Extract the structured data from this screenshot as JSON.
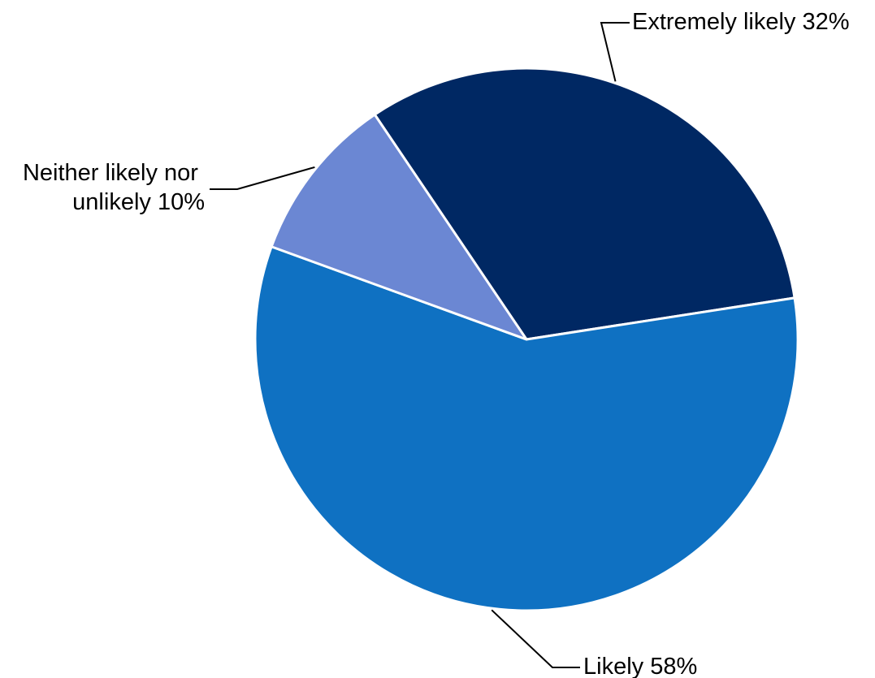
{
  "chart_data": {
    "type": "pie",
    "title": "",
    "slices": [
      {
        "label": "Extremely likely",
        "value": 32,
        "value_label": "32%",
        "color": "#002863"
      },
      {
        "label": "Likely",
        "value": 58,
        "value_label": "58%",
        "color": "#0F71C2"
      },
      {
        "label": "Neither likely nor unlikely",
        "value": 10,
        "value_label": "10%",
        "color": "#6B87D3"
      }
    ],
    "start_angle_deg": -34,
    "direction": "clockwise",
    "legend": "none",
    "label_style": "outside labels with leader lines"
  }
}
